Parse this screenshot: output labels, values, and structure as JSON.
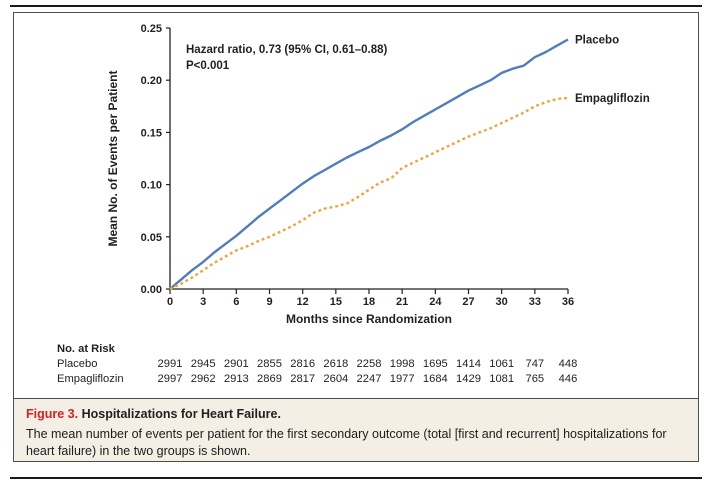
{
  "figure": {
    "caption_label": "Figure 3.",
    "caption_title": "Hospitalizations for Heart Failure.",
    "caption_body": "The mean number of events per patient for the first secondary outcome (total [first and recurrent] hospitalizations for heart failure) in the two groups is shown."
  },
  "colors": {
    "placebo_line": "#4f7dbf",
    "empagliflozin_line": "#f0a23c",
    "chart_text": "#231f20",
    "figure_label_red": "#d52127",
    "caption_bg": "#f3efe4",
    "frame_border": "#4d4d4d"
  },
  "chart_data": {
    "type": "line",
    "xlabel": "Months since Randomization",
    "ylabel": "Mean No. of Events per Patient",
    "xlim": [
      0,
      36
    ],
    "ylim": [
      0,
      0.25
    ],
    "xticks": [
      0,
      3,
      6,
      9,
      12,
      15,
      18,
      21,
      24,
      27,
      30,
      33,
      36
    ],
    "yticks": [
      0.0,
      0.05,
      0.1,
      0.15,
      0.2,
      0.25
    ],
    "grid": false,
    "legend_position": "end-of-line-labels",
    "annotation_lines": [
      "Hazard ratio, 0.73 (95% CI, 0.61–0.88)",
      "P<0.001"
    ],
    "x": [
      0,
      1,
      2,
      3,
      4,
      5,
      6,
      7,
      8,
      9,
      10,
      11,
      12,
      13,
      14,
      15,
      16,
      17,
      18,
      19,
      20,
      21,
      22,
      23,
      24,
      25,
      26,
      27,
      28,
      29,
      30,
      31,
      32,
      33,
      34,
      35,
      36
    ],
    "series": [
      {
        "name": "Placebo",
        "style": "solid",
        "color_key": "placebo_line",
        "values": [
          0.0,
          0.009,
          0.018,
          0.026,
          0.035,
          0.043,
          0.051,
          0.06,
          0.069,
          0.077,
          0.085,
          0.093,
          0.101,
          0.108,
          0.114,
          0.12,
          0.126,
          0.131,
          0.136,
          0.142,
          0.147,
          0.153,
          0.16,
          0.166,
          0.172,
          0.178,
          0.184,
          0.19,
          0.195,
          0.2,
          0.207,
          0.211,
          0.214,
          0.222,
          0.227,
          0.233,
          0.239
        ]
      },
      {
        "name": "Empagliflozin",
        "style": "dotted",
        "color_key": "empagliflozin_line",
        "values": [
          0.0,
          0.005,
          0.011,
          0.018,
          0.025,
          0.031,
          0.037,
          0.041,
          0.046,
          0.05,
          0.055,
          0.06,
          0.066,
          0.073,
          0.077,
          0.079,
          0.082,
          0.088,
          0.095,
          0.102,
          0.106,
          0.116,
          0.121,
          0.126,
          0.131,
          0.136,
          0.141,
          0.146,
          0.15,
          0.154,
          0.159,
          0.164,
          0.169,
          0.175,
          0.179,
          0.182,
          0.183
        ]
      }
    ]
  },
  "risk_table": {
    "header": "No. at Risk",
    "rows": [
      {
        "label": "Placebo",
        "values": [
          2991,
          2945,
          2901,
          2855,
          2816,
          2618,
          2258,
          1998,
          1695,
          1414,
          1061,
          747,
          448
        ]
      },
      {
        "label": "Empagliflozin",
        "values": [
          2997,
          2962,
          2913,
          2869,
          2817,
          2604,
          2247,
          1977,
          1684,
          1429,
          1081,
          765,
          446
        ]
      }
    ]
  }
}
